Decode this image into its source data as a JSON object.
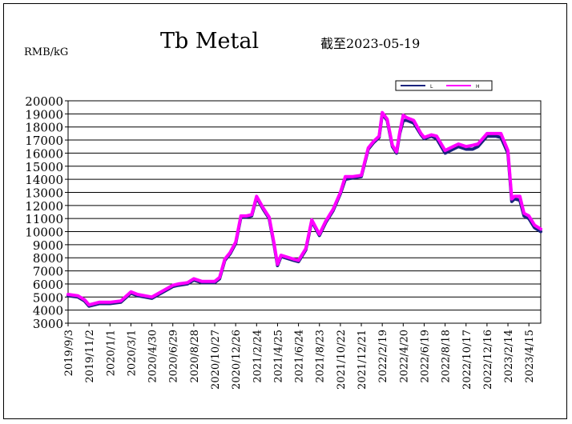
{
  "chart_data": {
    "type": "line",
    "title": "Tb Metal",
    "subtitle": "截至2023-05-19",
    "ylabel": "RMB/kG",
    "xlabel": "",
    "ylim": [
      3000,
      20000
    ],
    "yticks": [
      3000,
      4000,
      5000,
      6000,
      7000,
      8000,
      9000,
      10000,
      11000,
      12000,
      13000,
      14000,
      15000,
      16000,
      17000,
      18000,
      19000,
      20000
    ],
    "xticks": [
      "2019/9/3",
      "2019/11/2",
      "2020/1/1",
      "2020/3/1",
      "2020/4/30",
      "2020/6/29",
      "2020/8/28",
      "2020/10/27",
      "2020/12/26",
      "2021/2/24",
      "2021/4/25",
      "2021/6/24",
      "2021/8/23",
      "2021/10/22",
      "2021/12/21",
      "2022/2/19",
      "2022/4/20",
      "2022/6/19",
      "2022/8/18",
      "2022/10/17",
      "2022/12/16",
      "2023/2/14",
      "2023/4/15"
    ],
    "grid": true,
    "legend_position": "top-right",
    "series": [
      {
        "name": "L",
        "color": "#1a237e",
        "x": [
          "2019/9/3",
          "2019/10/1",
          "2019/10/20",
          "2019/11/2",
          "2019/12/1",
          "2020/1/1",
          "2020/2/1",
          "2020/3/1",
          "2020/3/20",
          "2020/4/10",
          "2020/4/30",
          "2020/5/20",
          "2020/6/29",
          "2020/7/15",
          "2020/8/10",
          "2020/8/28",
          "2020/9/20",
          "2020/10/10",
          "2020/10/27",
          "2020/11/10",
          "2020/11/25",
          "2020/12/10",
          "2020/12/26",
          "2021/1/10",
          "2021/1/25",
          "2021/2/10",
          "2021/2/24",
          "2021/3/15",
          "2021/4/1",
          "2021/4/15",
          "2021/4/25",
          "2021/5/5",
          "2021/6/10",
          "2021/6/24",
          "2021/7/15",
          "2021/8/1",
          "2021/8/23",
          "2021/9/10",
          "2021/10/1",
          "2021/10/22",
          "2021/11/5",
          "2021/11/25",
          "2021/12/21",
          "2022/1/10",
          "2022/1/25",
          "2022/2/10",
          "2022/2/19",
          "2022/3/5",
          "2022/3/20",
          "2022/4/1",
          "2022/4/10",
          "2022/4/20",
          "2022/5/1",
          "2022/5/20",
          "2022/6/10",
          "2022/6/19",
          "2022/7/10",
          "2022/7/25",
          "2022/8/18",
          "2022/9/10",
          "2022/9/25",
          "2022/10/17",
          "2022/11/5",
          "2022/11/20",
          "2022/12/16",
          "2023/1/10",
          "2023/1/25",
          "2023/2/14",
          "2023/2/25",
          "2023/3/5",
          "2023/3/20",
          "2023/4/1",
          "2023/4/15",
          "2023/5/1",
          "2023/5/19"
        ],
        "values": [
          5100,
          5000,
          4700,
          4300,
          4500,
          4500,
          4600,
          5300,
          5100,
          5000,
          4900,
          5200,
          5800,
          5900,
          6000,
          6300,
          6100,
          6100,
          6100,
          6400,
          7800,
          8300,
          9100,
          11100,
          11100,
          11200,
          12600,
          11700,
          11000,
          9000,
          7400,
          8100,
          7800,
          7700,
          8600,
          10800,
          9700,
          10700,
          11600,
          12900,
          14000,
          14100,
          14200,
          16300,
          16800,
          17200,
          19000,
          18500,
          16500,
          16000,
          17500,
          18500,
          18500,
          18300,
          17400,
          17100,
          17300,
          17100,
          16000,
          16300,
          16500,
          16300,
          16300,
          16500,
          17300,
          17300,
          17200,
          16000,
          12300,
          12500,
          12400,
          11200,
          11000,
          10300,
          10000
        ]
      },
      {
        "name": "H",
        "color": "#ff00ff",
        "x": [
          "2019/9/3",
          "2019/10/1",
          "2019/10/20",
          "2019/11/2",
          "2019/12/1",
          "2020/1/1",
          "2020/2/1",
          "2020/3/1",
          "2020/3/20",
          "2020/4/10",
          "2020/4/30",
          "2020/5/20",
          "2020/6/29",
          "2020/7/15",
          "2020/8/10",
          "2020/8/28",
          "2020/9/20",
          "2020/10/10",
          "2020/10/27",
          "2020/11/10",
          "2020/11/25",
          "2020/12/10",
          "2020/12/26",
          "2021/1/10",
          "2021/1/25",
          "2021/2/10",
          "2021/2/24",
          "2021/3/15",
          "2021/4/1",
          "2021/4/15",
          "2021/4/25",
          "2021/5/5",
          "2021/6/10",
          "2021/6/24",
          "2021/7/15",
          "2021/8/1",
          "2021/8/23",
          "2021/9/10",
          "2021/10/1",
          "2021/10/22",
          "2021/11/5",
          "2021/11/25",
          "2021/12/21",
          "2022/1/10",
          "2022/1/25",
          "2022/2/10",
          "2022/2/19",
          "2022/3/5",
          "2022/3/20",
          "2022/4/1",
          "2022/4/10",
          "2022/4/20",
          "2022/5/1",
          "2022/5/20",
          "2022/6/10",
          "2022/6/19",
          "2022/7/10",
          "2022/7/25",
          "2022/8/18",
          "2022/9/10",
          "2022/9/25",
          "2022/10/17",
          "2022/11/5",
          "2022/11/20",
          "2022/12/16",
          "2023/1/10",
          "2023/1/25",
          "2023/2/14",
          "2023/2/25",
          "2023/3/5",
          "2023/3/20",
          "2023/4/1",
          "2023/4/15",
          "2023/5/1",
          "2023/5/19"
        ],
        "values": [
          5200,
          5100,
          4800,
          4400,
          4600,
          4600,
          4700,
          5400,
          5200,
          5100,
          5000,
          5300,
          5900,
          6000,
          6100,
          6400,
          6200,
          6200,
          6200,
          6500,
          7900,
          8400,
          9200,
          11200,
          11200,
          11300,
          12700,
          11800,
          11100,
          9100,
          7500,
          8200,
          7900,
          7800,
          8700,
          10900,
          9800,
          10800,
          11700,
          13000,
          14200,
          14200,
          14300,
          16400,
          16900,
          17300,
          19100,
          18600,
          16600,
          16100,
          17600,
          18900,
          18700,
          18500,
          17500,
          17200,
          17400,
          17300,
          16200,
          16500,
          16700,
          16500,
          16600,
          16700,
          17500,
          17500,
          17500,
          16200,
          12500,
          12700,
          12700,
          11400,
          11200,
          10500,
          10200
        ]
      }
    ]
  }
}
